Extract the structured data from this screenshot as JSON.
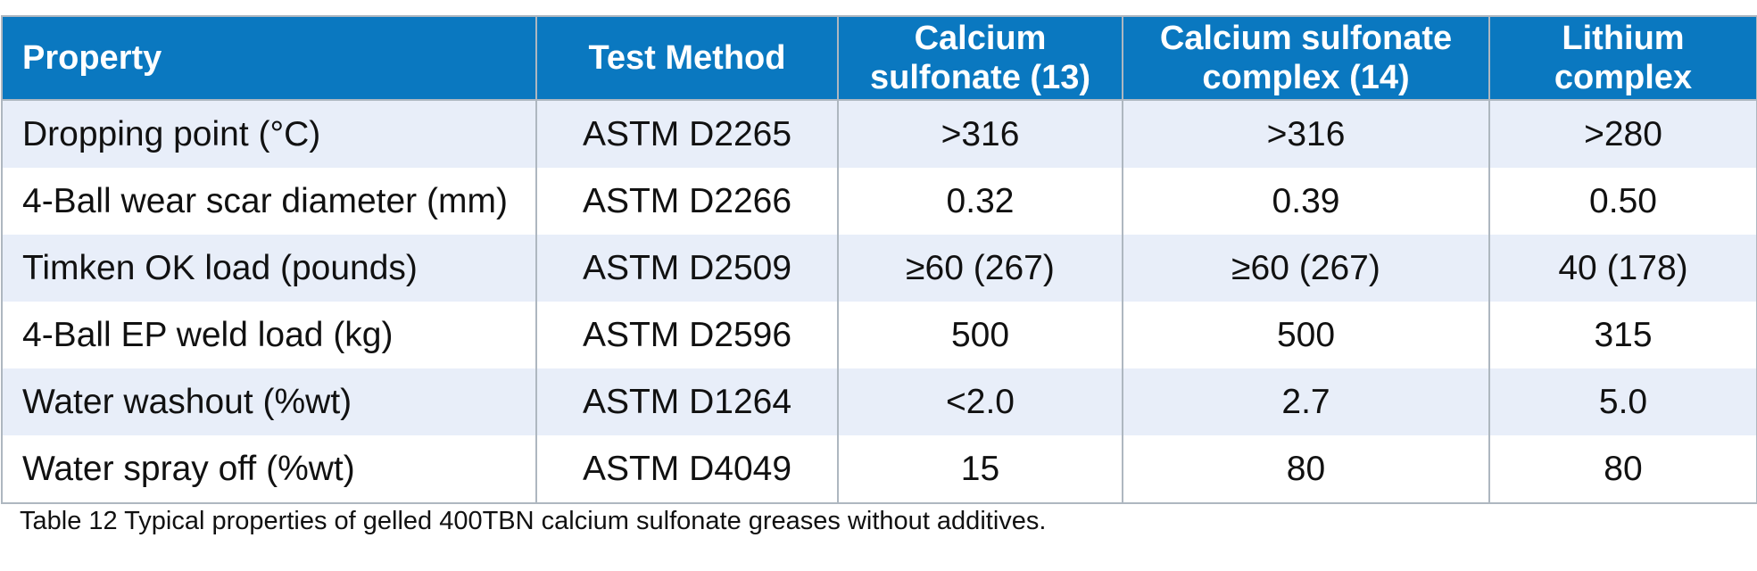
{
  "table": {
    "headers": [
      "Property",
      "Test Method",
      "Calcium sulfonate (13)",
      "Calcium sulfonate complex (14)",
      "Lithium complex"
    ],
    "header_lines": [
      [
        "Property"
      ],
      [
        "Test Method"
      ],
      [
        "Calcium",
        "sulfonate (13)"
      ],
      [
        "Calcium sulfonate",
        "complex (14)"
      ],
      [
        "Lithium",
        "complex"
      ]
    ],
    "rows": [
      [
        "Dropping point (°C)",
        "ASTM D2265",
        ">316",
        ">316",
        ">280"
      ],
      [
        "4-Ball wear scar diameter (mm)",
        "ASTM D2266",
        "0.32",
        "0.39",
        "0.50"
      ],
      [
        "Timken OK load (pounds)",
        "ASTM D2509",
        "≥60 (267)",
        "≥60 (267)",
        "40 (178)"
      ],
      [
        "4-Ball EP weld load (kg)",
        "ASTM D2596",
        "500",
        "500",
        "315"
      ],
      [
        "Water washout (%wt)",
        "ASTM D1264",
        "<2.0",
        "2.7",
        "5.0"
      ],
      [
        "Water spray off (%wt)",
        "ASTM D4049",
        "15",
        "80",
        "80"
      ]
    ]
  },
  "caption": "Table 12 Typical properties of gelled 400TBN calcium sulfonate greases without additives.",
  "colors": {
    "header_bg": "#0a78c0",
    "header_text": "#ffffff",
    "band_row": "#e8eef9",
    "plain_row": "#ffffff",
    "grid": "#aeb7c0"
  }
}
